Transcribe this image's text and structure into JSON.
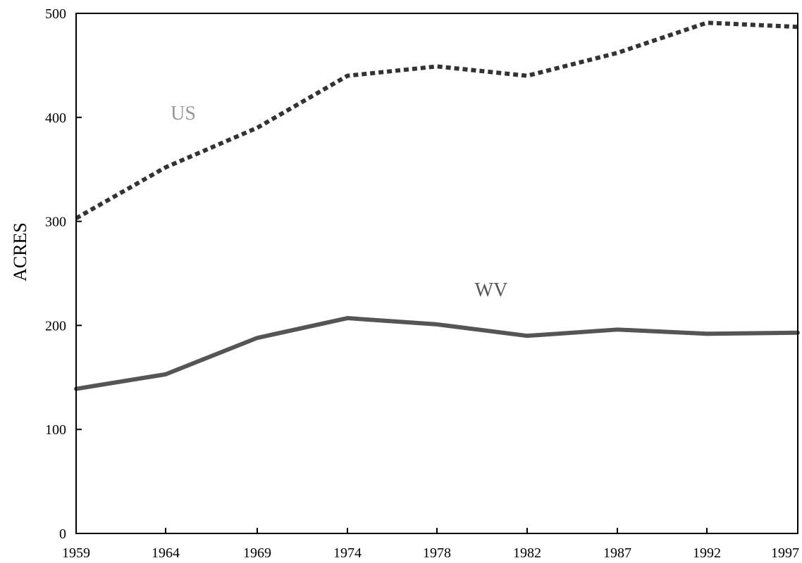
{
  "chart_data": {
    "type": "line",
    "x": [
      "1959",
      "1964",
      "1969",
      "1974",
      "1978",
      "1982",
      "1987",
      "1992",
      "1997"
    ],
    "xlabel": "",
    "ylabel": "ACRES",
    "ylim": [
      0,
      500
    ],
    "yticks": [
      0,
      100,
      200,
      300,
      400,
      500
    ],
    "grid": false,
    "series": [
      {
        "name": "US",
        "values": [
          303,
          352,
          390,
          440,
          449,
          440,
          462,
          491,
          487
        ],
        "color": "#333333",
        "style": "dotted",
        "label_color": "#999999"
      },
      {
        "name": "WV",
        "values": [
          139,
          153,
          188,
          207,
          201,
          190,
          196,
          192,
          193
        ],
        "color": "#555555",
        "style": "solid",
        "label_color": "#555555"
      }
    ]
  }
}
